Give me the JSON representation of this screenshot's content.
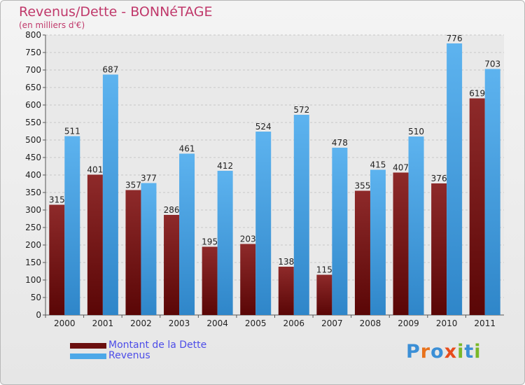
{
  "title": "Revenus/Dette - BONNéTAGE",
  "subtitle": "(en milliers d'€)",
  "colors": {
    "debt": "#8b1a1a",
    "revenue": "#4da8e8",
    "text": "#c0396b",
    "legend_text": "#4d4de8"
  },
  "logo": {
    "letters": [
      "P",
      "r",
      "o",
      "x",
      "i",
      "t",
      "i"
    ],
    "colors": [
      "#3b8fd6",
      "#e8721c",
      "#3b8fd6",
      "#e84c1c",
      "#7ab828",
      "#3b8fd6",
      "#7ab828"
    ]
  },
  "legend": {
    "items": [
      {
        "label": "Montant de la Dette",
        "color": "#6b0f0f"
      },
      {
        "label": "Revenus",
        "color": "#4da8e8"
      }
    ]
  },
  "chart_data": {
    "type": "bar",
    "categories": [
      "2000",
      "2001",
      "2002",
      "2003",
      "2004",
      "2005",
      "2006",
      "2007",
      "2008",
      "2009",
      "2010",
      "2011"
    ],
    "series": [
      {
        "name": "Montant de la Dette",
        "values": [
          315,
          401,
          357,
          286,
          195,
          203,
          138,
          115,
          355,
          407,
          376,
          619
        ]
      },
      {
        "name": "Revenus",
        "values": [
          511,
          687,
          377,
          461,
          412,
          524,
          572,
          478,
          415,
          510,
          776,
          703
        ]
      }
    ],
    "title": "Revenus/Dette - BONNéTAGE",
    "ylabel": "(en milliers d'€)",
    "ylim": [
      0,
      800
    ],
    "yticks": [
      0,
      50,
      100,
      150,
      200,
      250,
      300,
      350,
      400,
      450,
      500,
      550,
      600,
      650,
      700,
      750,
      800
    ],
    "grid": true,
    "legend_position": "bottom-left"
  }
}
